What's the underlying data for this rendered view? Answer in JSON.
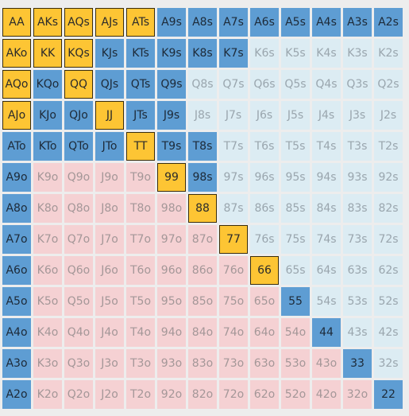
{
  "ranks": [
    "A",
    "K",
    "Q",
    "J",
    "T",
    "9",
    "8",
    "7",
    "6",
    "5",
    "4",
    "3",
    "2"
  ],
  "colors": {
    "raise": "#fdc534",
    "call": "#5e9dd3",
    "fold_suited": "#dcecf3",
    "fold_offsuit": "#f5d1d3"
  },
  "grid": [
    [
      "AA",
      "AKs",
      "AQs",
      "AJs",
      "ATs",
      "A9s",
      "A8s",
      "A7s",
      "A6s",
      "A5s",
      "A4s",
      "A3s",
      "A2s"
    ],
    [
      "AKo",
      "KK",
      "KQs",
      "KJs",
      "KTs",
      "K9s",
      "K8s",
      "K7s",
      "K6s",
      "K5s",
      "K4s",
      "K3s",
      "K2s"
    ],
    [
      "AQo",
      "KQo",
      "QQ",
      "QJs",
      "QTs",
      "Q9s",
      "Q8s",
      "Q7s",
      "Q6s",
      "Q5s",
      "Q4s",
      "Q3s",
      "Q2s"
    ],
    [
      "AJo",
      "KJo",
      "QJo",
      "JJ",
      "JTs",
      "J9s",
      "J8s",
      "J7s",
      "J6s",
      "J5s",
      "J4s",
      "J3s",
      "J2s"
    ],
    [
      "ATo",
      "KTo",
      "QTo",
      "JTo",
      "TT",
      "T9s",
      "T8s",
      "T7s",
      "T6s",
      "T5s",
      "T4s",
      "T3s",
      "T2s"
    ],
    [
      "A9o",
      "K9o",
      "Q9o",
      "J9o",
      "T9o",
      "99",
      "98s",
      "97s",
      "96s",
      "95s",
      "94s",
      "93s",
      "92s"
    ],
    [
      "A8o",
      "K8o",
      "Q8o",
      "J8o",
      "T8o",
      "98o",
      "88",
      "87s",
      "86s",
      "85s",
      "84s",
      "83s",
      "82s"
    ],
    [
      "A7o",
      "K7o",
      "Q7o",
      "J7o",
      "T7o",
      "97o",
      "87o",
      "77",
      "76s",
      "75s",
      "74s",
      "73s",
      "72s"
    ],
    [
      "A6o",
      "K6o",
      "Q6o",
      "J6o",
      "T6o",
      "96o",
      "86o",
      "76o",
      "66",
      "65s",
      "64s",
      "63s",
      "62s"
    ],
    [
      "A5o",
      "K5o",
      "Q5o",
      "J5o",
      "T5o",
      "95o",
      "85o",
      "75o",
      "65o",
      "55",
      "54s",
      "53s",
      "52s"
    ],
    [
      "A4o",
      "K4o",
      "Q4o",
      "J4o",
      "T4o",
      "94o",
      "84o",
      "74o",
      "64o",
      "54o",
      "44",
      "43s",
      "42s"
    ],
    [
      "A3o",
      "K3o",
      "Q3o",
      "J3o",
      "T3o",
      "93o",
      "83o",
      "73o",
      "63o",
      "53o",
      "43o",
      "33",
      "32s"
    ],
    [
      "A2o",
      "K2o",
      "Q2o",
      "J2o",
      "T2o",
      "92o",
      "82o",
      "72o",
      "62o",
      "52o",
      "42o",
      "32o",
      "22"
    ]
  ],
  "actions": [
    [
      "raise",
      "raise",
      "raise",
      "raise",
      "raise",
      "call",
      "call",
      "call",
      "call",
      "call",
      "call",
      "call",
      "call"
    ],
    [
      "raise",
      "raise",
      "raise",
      "call",
      "call",
      "call",
      "call",
      "call",
      "fold",
      "fold",
      "fold",
      "fold",
      "fold"
    ],
    [
      "raise",
      "call",
      "raise",
      "call",
      "call",
      "call",
      "fold",
      "fold",
      "fold",
      "fold",
      "fold",
      "fold",
      "fold"
    ],
    [
      "raise",
      "call",
      "call",
      "raise",
      "call",
      "call",
      "fold",
      "fold",
      "fold",
      "fold",
      "fold",
      "fold",
      "fold"
    ],
    [
      "call",
      "call",
      "call",
      "call",
      "raise",
      "call",
      "call",
      "fold",
      "fold",
      "fold",
      "fold",
      "fold",
      "fold"
    ],
    [
      "call",
      "fold",
      "fold",
      "fold",
      "fold",
      "raise",
      "call",
      "fold",
      "fold",
      "fold",
      "fold",
      "fold",
      "fold"
    ],
    [
      "call",
      "fold",
      "fold",
      "fold",
      "fold",
      "fold",
      "raise",
      "fold",
      "fold",
      "fold",
      "fold",
      "fold",
      "fold"
    ],
    [
      "call",
      "fold",
      "fold",
      "fold",
      "fold",
      "fold",
      "fold",
      "raise",
      "fold",
      "fold",
      "fold",
      "fold",
      "fold"
    ],
    [
      "call",
      "fold",
      "fold",
      "fold",
      "fold",
      "fold",
      "fold",
      "fold",
      "raise",
      "fold",
      "fold",
      "fold",
      "fold"
    ],
    [
      "call",
      "fold",
      "fold",
      "fold",
      "fold",
      "fold",
      "fold",
      "fold",
      "fold",
      "call",
      "fold",
      "fold",
      "fold"
    ],
    [
      "call",
      "fold",
      "fold",
      "fold",
      "fold",
      "fold",
      "fold",
      "fold",
      "fold",
      "fold",
      "call",
      "fold",
      "fold"
    ],
    [
      "call",
      "fold",
      "fold",
      "fold",
      "fold",
      "fold",
      "fold",
      "fold",
      "fold",
      "fold",
      "fold",
      "call",
      "fold"
    ],
    [
      "call",
      "fold",
      "fold",
      "fold",
      "fold",
      "fold",
      "fold",
      "fold",
      "fold",
      "fold",
      "fold",
      "fold",
      "call"
    ]
  ]
}
